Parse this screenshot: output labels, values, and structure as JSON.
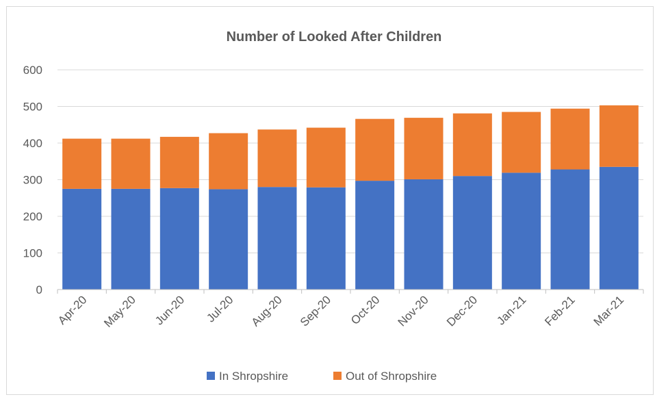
{
  "chart_data": {
    "type": "bar",
    "stacked": true,
    "title": "Number of Looked After Children",
    "xlabel": "",
    "ylabel": "",
    "categories": [
      "Apr-20",
      "May-20",
      "Jun-20",
      "Jul-20",
      "Aug-20",
      "Sep-20",
      "Oct-20",
      "Nov-20",
      "Dec-20",
      "Jan-21",
      "Feb-21",
      "Mar-21"
    ],
    "series": [
      {
        "name": "In Shropshire",
        "color": "#4472c4",
        "values": [
          275,
          275,
          277,
          274,
          280,
          279,
          297,
          301,
          310,
          319,
          328,
          335
        ]
      },
      {
        "name": "Out of Shropshire",
        "color": "#ed7d31",
        "values": [
          137,
          137,
          140,
          153,
          157,
          163,
          169,
          168,
          171,
          166,
          166,
          168
        ]
      }
    ],
    "ylim": [
      0,
      600
    ],
    "yticks": [
      0,
      100,
      200,
      300,
      400,
      500,
      600
    ],
    "grid": true,
    "legend_position": "bottom"
  }
}
